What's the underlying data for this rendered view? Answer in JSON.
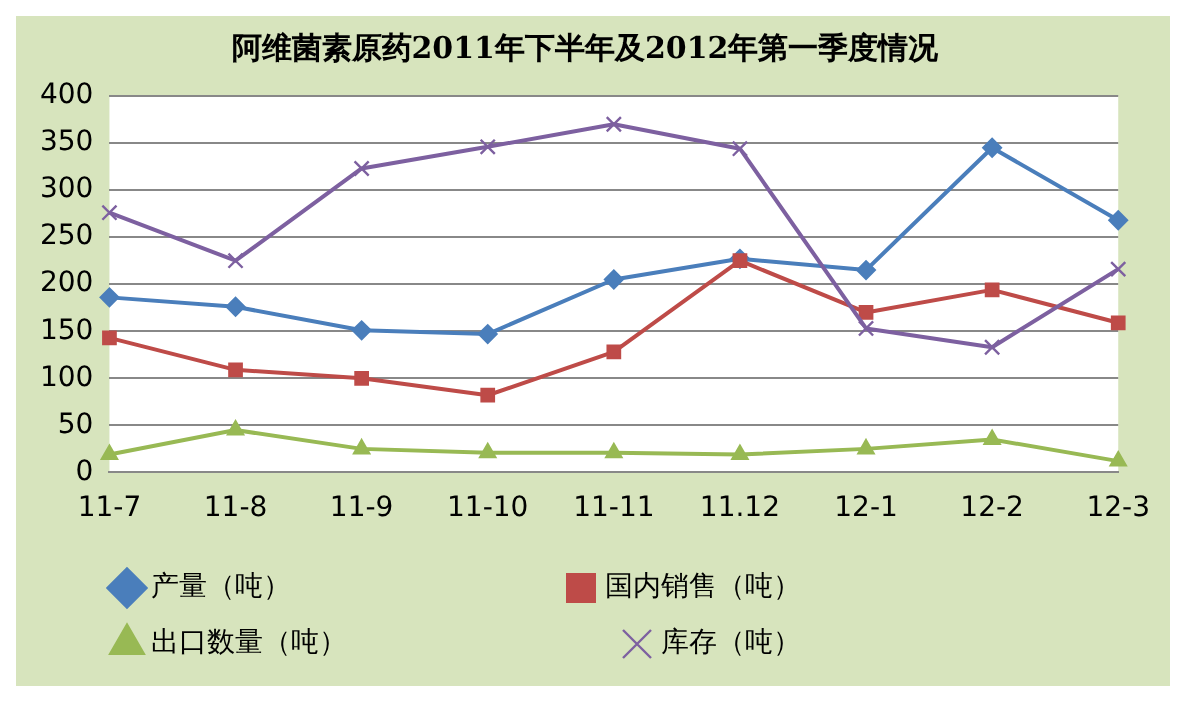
{
  "chart_data": {
    "type": "line",
    "title": "阿维菌素原药2011年下半年及2012年第一季度情况",
    "categories": [
      "11-7",
      "11-8",
      "11-9",
      "11-10",
      "11-11",
      "11.12",
      "12-1",
      "12-2",
      "12-3"
    ],
    "series": [
      {
        "name": "产量（吨）",
        "color": "#4a7ebb",
        "marker": "diamond",
        "values": [
          186,
          176,
          151,
          147,
          205,
          227,
          215,
          345,
          268
        ]
      },
      {
        "name": "国内销售（吨）",
        "color": "#be4b48",
        "marker": "square",
        "values": [
          143,
          109,
          100,
          82,
          128,
          225,
          170,
          194,
          159
        ]
      },
      {
        "name": "出口数量（吨）",
        "color": "#98b954",
        "marker": "triangle",
        "values": [
          19,
          45,
          25,
          21,
          21,
          19,
          25,
          35,
          12
        ]
      },
      {
        "name": "库存（吨）",
        "color": "#7d60a0",
        "marker": "cross",
        "values": [
          276,
          225,
          323,
          346,
          370,
          344,
          153,
          133,
          216
        ]
      }
    ],
    "ylim": [
      0,
      400
    ],
    "yticks": [
      0,
      50,
      100,
      150,
      200,
      250,
      300,
      350,
      400
    ],
    "grid": "y",
    "legend": "bottom"
  }
}
